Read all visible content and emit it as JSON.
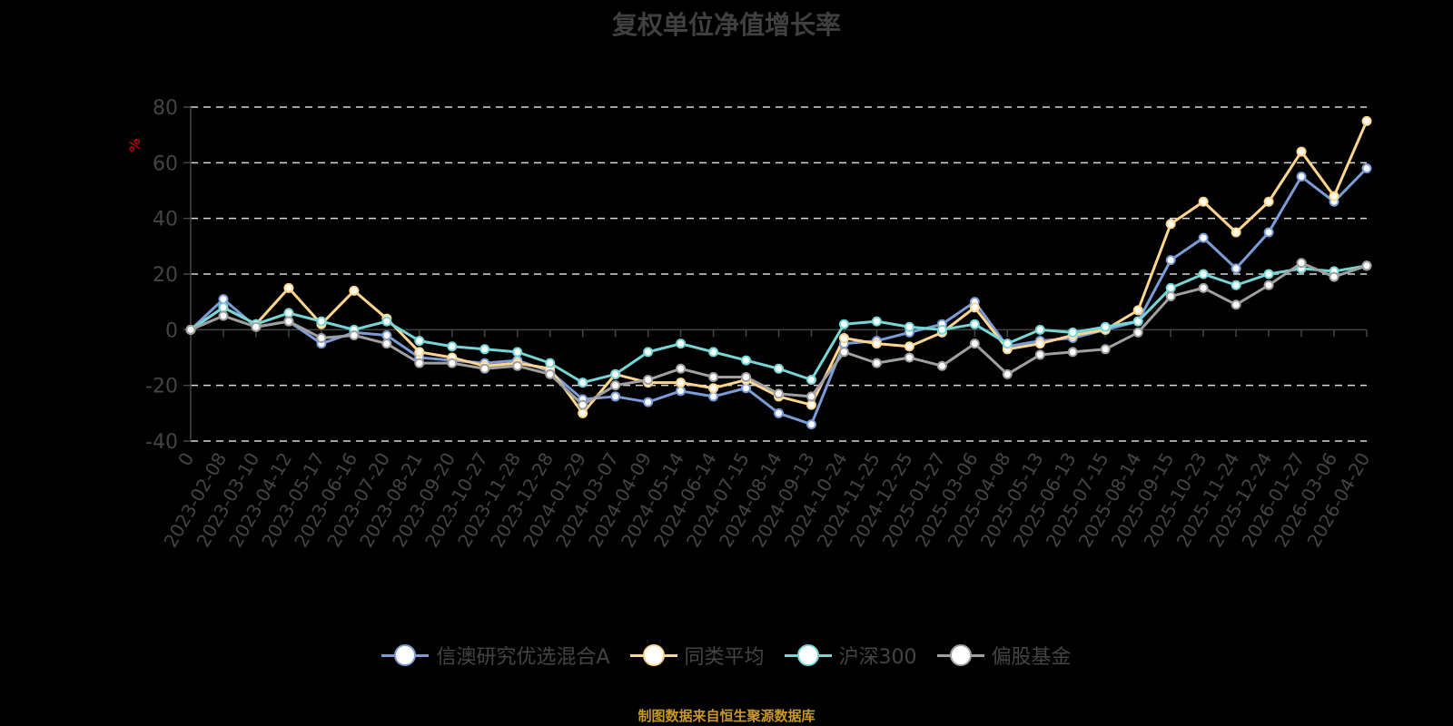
{
  "title": "复权单位净值增长率",
  "source": "制图数据来自恒生聚源数据库",
  "chart_data": {
    "type": "line",
    "title": "复权单位净值增长率",
    "xlabel": "",
    "ylabel": "%",
    "ylim": [
      -40,
      80
    ],
    "yticks": [
      80,
      60,
      40,
      20,
      0,
      -20,
      -40
    ],
    "grid": true,
    "legend_position": "bottom",
    "categories": [
      "0",
      "2023-02-08",
      "2023-03-10",
      "2023-04-12",
      "2023-05-17",
      "2023-06-16",
      "2023-07-20",
      "2023-08-21",
      "2023-09-20",
      "2023-10-27",
      "2023-11-28",
      "2023-12-28",
      "2024-01-29",
      "2024-03-07",
      "2024-04-09",
      "2024-05-14",
      "2024-06-14",
      "2024-07-15",
      "2024-08-14",
      "2024-09-13",
      "2024-10-24",
      "2024-11-25",
      "2024-12-25",
      "2025-01-27",
      "2025-03-06",
      "2025-04-08",
      "2025-05-13",
      "2025-06-13",
      "2025-07-15",
      "2025-08-14",
      "2025-09-15",
      "2025-10-23",
      "2025-11-24",
      "2025-12-24",
      "2026-01-27",
      "2026-03-06",
      "2026-04-20"
    ],
    "series": [
      {
        "name": "信澳研究优选混合A",
        "color": "#7b9cd6",
        "values": [
          0,
          11,
          1,
          3,
          -5,
          -1,
          -2,
          -10,
          -11,
          -12,
          -11,
          -15,
          -25,
          -24,
          -26,
          -22,
          -24,
          -21,
          -30,
          -34,
          -5,
          -4,
          -1,
          2,
          10,
          -6,
          -4,
          -3,
          0,
          3,
          25,
          33,
          22,
          35,
          55,
          46,
          58
        ]
      },
      {
        "name": "同类平均",
        "color": "#ffd68f",
        "values": [
          0,
          8,
          2,
          15,
          2,
          14,
          4,
          -8,
          -10,
          -13,
          -12,
          -14,
          -30,
          -16,
          -19,
          -19,
          -21,
          -18,
          -24,
          -27,
          -3,
          -5,
          -6,
          -1,
          8,
          -7,
          -5,
          -2,
          0,
          7,
          38,
          46,
          35,
          46,
          64,
          48,
          75
        ]
      },
      {
        "name": "沪深300",
        "color": "#76d5d6",
        "values": [
          0,
          8,
          2,
          6,
          3,
          0,
          3,
          -4,
          -6,
          -7,
          -8,
          -12,
          -19,
          -16,
          -8,
          -5,
          -8,
          -11,
          -14,
          -18,
          2,
          3,
          1,
          0,
          2,
          -5,
          0,
          -1,
          1,
          3,
          15,
          20,
          16,
          20,
          22,
          21,
          23
        ]
      },
      {
        "name": "偏股基金",
        "color": "#a0a0a0",
        "values": [
          0,
          5,
          1,
          3,
          -3,
          -2,
          -5,
          -12,
          -12,
          -14,
          -13,
          -16,
          -27,
          -20,
          -18,
          -14,
          -17,
          -17,
          -23,
          -24,
          -8,
          -12,
          -10,
          -13,
          -5,
          -16,
          -9,
          -8,
          -7,
          -1,
          12,
          15,
          9,
          16,
          24,
          19,
          23
        ]
      }
    ]
  },
  "legend": [
    {
      "label": "信澳研究优选混合A",
      "color": "#7b9cd6"
    },
    {
      "label": "同类平均",
      "color": "#ffd68f"
    },
    {
      "label": "沪深300",
      "color": "#76d5d6"
    },
    {
      "label": "偏股基金",
      "color": "#a0a0a0"
    }
  ]
}
